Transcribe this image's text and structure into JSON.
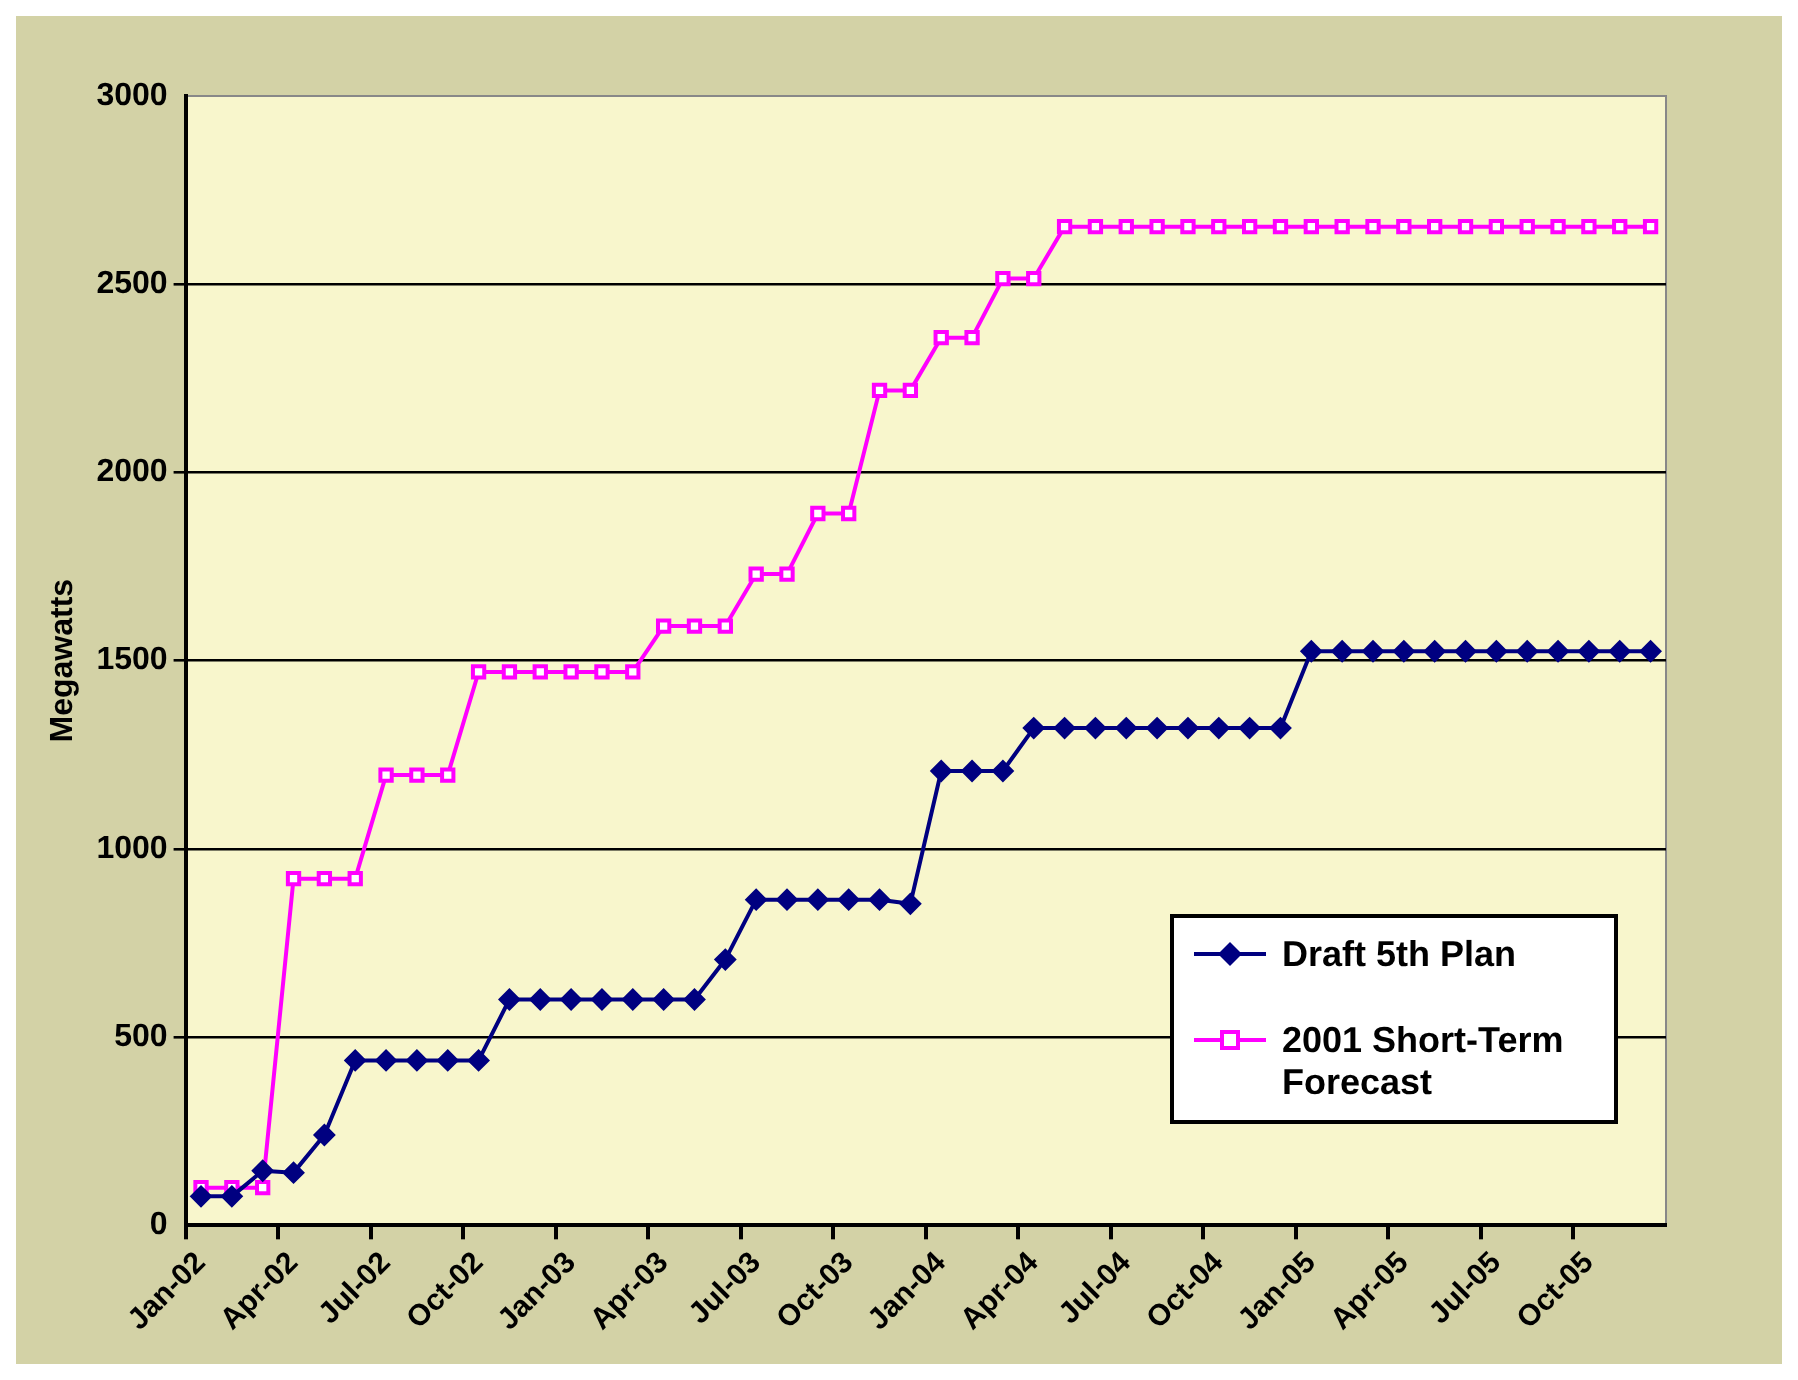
{
  "chart_data": {
    "type": "line",
    "ylabel": "Megawatts",
    "categories": [
      "Jan-02",
      null,
      null,
      "Apr-02",
      null,
      null,
      "Jul-02",
      null,
      null,
      "Oct-02",
      null,
      null,
      "Jan-03",
      null,
      null,
      "Apr-03",
      null,
      null,
      "Jul-03",
      null,
      null,
      "Oct-03",
      null,
      null,
      "Jan-04",
      null,
      null,
      "Apr-04",
      null,
      null,
      "Jul-04",
      null,
      null,
      "Oct-04",
      null,
      null,
      "Jan-05",
      null,
      null,
      "Apr-05",
      null,
      null,
      "Jul-05",
      null,
      null,
      "Oct-05",
      null,
      null
    ],
    "series": [
      {
        "name": "Draft 5th Plan",
        "color": "#000080",
        "marker": "diamond",
        "values": [
          77,
          77,
          145,
          140,
          240,
          438,
          438,
          438,
          438,
          438,
          600,
          600,
          600,
          600,
          600,
          600,
          600,
          706,
          865,
          865,
          865,
          865,
          865,
          854,
          1207,
          1207,
          1207,
          1321,
          1321,
          1321,
          1321,
          1321,
          1321,
          1321,
          1321,
          1321,
          1525,
          1525,
          1525,
          1525,
          1525,
          1525,
          1525,
          1525,
          1525,
          1525,
          1525,
          1525
        ]
      },
      {
        "name": "2001 Short-Term Forecast",
        "color": "#ff00ff",
        "marker": "square",
        "values": [
          100,
          100,
          100,
          921,
          921,
          921,
          1196,
          1196,
          1196,
          1470,
          1470,
          1470,
          1470,
          1470,
          1470,
          1592,
          1592,
          1592,
          1730,
          1730,
          1891,
          1891,
          2218,
          2218,
          2358,
          2358,
          2515,
          2515,
          2653,
          2653,
          2653,
          2653,
          2653,
          2653,
          2653,
          2653,
          2653,
          2653,
          2653,
          2653,
          2653,
          2653,
          2653,
          2653,
          2653,
          2653,
          2653,
          2653
        ]
      }
    ],
    "ylim": [
      0,
      3000
    ],
    "yticks": [
      0,
      500,
      1000,
      1500,
      2000,
      2500,
      3000
    ],
    "grid": "y",
    "legend": "bottom right"
  }
}
